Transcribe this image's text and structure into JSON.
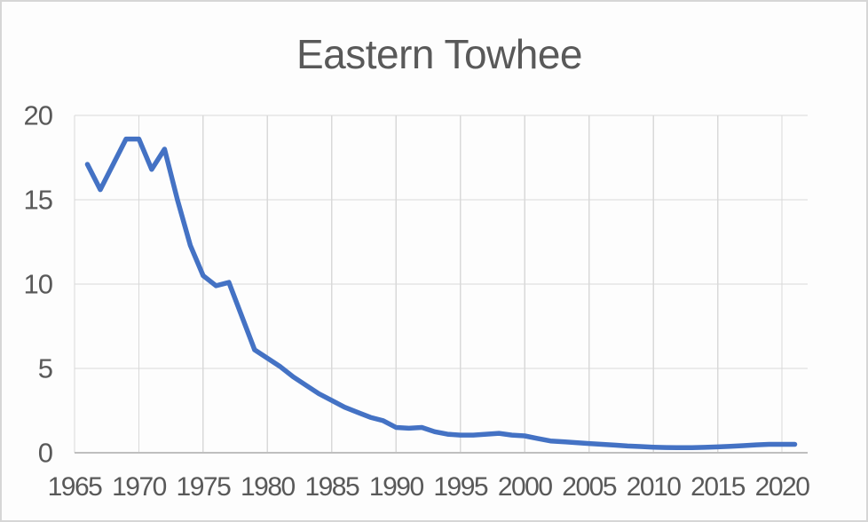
{
  "window": {
    "background": "#fdfdfd",
    "border_color": "#d6d6d6"
  },
  "chart_data": {
    "type": "line",
    "title": "Eastern Towhee",
    "xlabel": "",
    "ylabel": "",
    "x": [
      1966,
      1967,
      1968,
      1969,
      1970,
      1971,
      1972,
      1973,
      1974,
      1975,
      1976,
      1977,
      1978,
      1979,
      1980,
      1981,
      1982,
      1983,
      1984,
      1985,
      1986,
      1987,
      1988,
      1989,
      1990,
      1991,
      1992,
      1993,
      1994,
      1995,
      1996,
      1997,
      1998,
      1999,
      2000,
      2001,
      2002,
      2003,
      2004,
      2005,
      2006,
      2007,
      2008,
      2009,
      2010,
      2011,
      2012,
      2013,
      2014,
      2015,
      2016,
      2017,
      2018,
      2019,
      2020,
      2021
    ],
    "series": [
      {
        "name": "Eastern Towhee",
        "values": [
          17.1,
          15.6,
          17.1,
          18.6,
          18.6,
          16.8,
          18.0,
          15.0,
          12.3,
          10.5,
          9.9,
          10.1,
          8.1,
          6.1,
          5.6,
          5.1,
          4.5,
          4.0,
          3.5,
          3.1,
          2.7,
          2.4,
          2.1,
          1.9,
          1.5,
          1.45,
          1.5,
          1.25,
          1.1,
          1.05,
          1.05,
          1.1,
          1.15,
          1.05,
          1.0,
          0.85,
          0.7,
          0.65,
          0.6,
          0.55,
          0.5,
          0.45,
          0.4,
          0.37,
          0.33,
          0.31,
          0.3,
          0.3,
          0.32,
          0.35,
          0.38,
          0.42,
          0.47,
          0.5,
          0.5,
          0.5
        ]
      }
    ],
    "x_ticks": [
      1965,
      1970,
      1975,
      1980,
      1985,
      1990,
      1995,
      2000,
      2005,
      2010,
      2015,
      2020
    ],
    "y_ticks": [
      0,
      5,
      10,
      15,
      20
    ],
    "xlim": [
      1965,
      2022
    ],
    "ylim": [
      0,
      20
    ],
    "grid": true,
    "legend_position": "none",
    "colors": {
      "line": "#4472C4",
      "grid": "#d9d9d9",
      "axis": "#bfbfbf",
      "tick_label": "#595959",
      "title": "#595959"
    }
  }
}
